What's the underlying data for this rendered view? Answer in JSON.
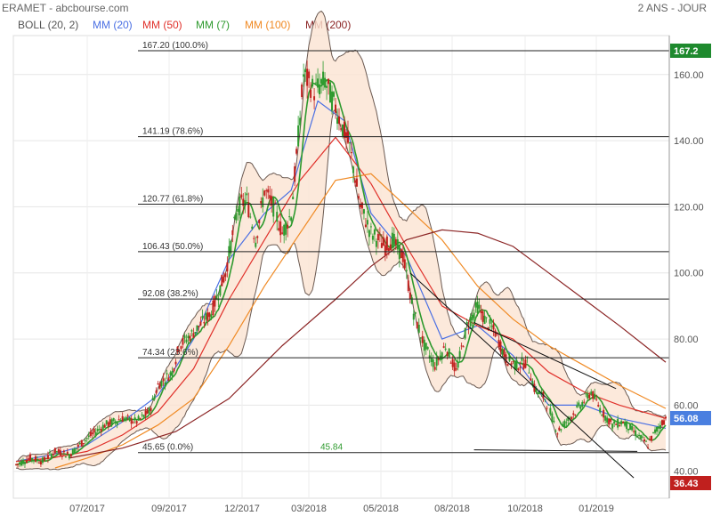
{
  "header": {
    "title": "ERAMET - abcbourse.com",
    "period": "2 ANS - JOUR"
  },
  "legend": [
    {
      "label": "BOLL (20, 2)",
      "color": "#555555"
    },
    {
      "label": "MM (20)",
      "color": "#4a6fe3"
    },
    {
      "label": "MM (50)",
      "color": "#e0302a"
    },
    {
      "label": "MM (7)",
      "color": "#2e9a2e"
    },
    {
      "label": "MM (100)",
      "color": "#f08a24"
    },
    {
      "label": "MM (200)",
      "color": "#8b2424"
    }
  ],
  "chart_data": {
    "type": "candlestick",
    "y_axis": {
      "ticks": [
        40,
        60,
        80,
        100,
        120,
        140,
        160
      ],
      "tick_labels": [
        "40.00",
        "60.00",
        "80.00",
        "100.00",
        "120.00",
        "140.00",
        "160.00"
      ],
      "position": "right",
      "ylim": [
        36,
        170
      ]
    },
    "x_axis": {
      "tick_labels": [
        "07/2017",
        "09/2017",
        "12/2017",
        "03/2018",
        "05/2018",
        "08/2018",
        "10/2018",
        "01/2019"
      ]
    },
    "fibonacci_levels": [
      {
        "value": 167.2,
        "label": "167.20  (100.0%)"
      },
      {
        "value": 141.19,
        "label": "141.19  (78.6%)"
      },
      {
        "value": 120.77,
        "label": "120.77  (61.8%)"
      },
      {
        "value": 106.43,
        "label": "106.43  (50.0%)"
      },
      {
        "value": 92.08,
        "label": "92.08  (38.2%)"
      },
      {
        "value": 74.34,
        "label": "74.34  (23.6%)"
      },
      {
        "value": 45.65,
        "label": "45.65  (0.0%)"
      }
    ],
    "price_tags": [
      {
        "value": 167.2,
        "label": "167.2",
        "color": "#1e8a2e"
      },
      {
        "value": 56.08,
        "label": "56.08",
        "color": "#4a7fe0"
      },
      {
        "value": 36.43,
        "label": "36.43",
        "color": "#c0201e"
      }
    ],
    "annotations": [
      {
        "text": "45.84",
        "color": "#2e9a2e"
      }
    ],
    "price_path_approx": [
      [
        0,
        42
      ],
      [
        8,
        44
      ],
      [
        15,
        43
      ],
      [
        22,
        46
      ],
      [
        30,
        45
      ],
      [
        40,
        50
      ],
      [
        50,
        54
      ],
      [
        55,
        55
      ],
      [
        60,
        56
      ],
      [
        68,
        55
      ],
      [
        75,
        58
      ],
      [
        80,
        66
      ],
      [
        88,
        70
      ],
      [
        92,
        78
      ],
      [
        100,
        82
      ],
      [
        110,
        88
      ],
      [
        118,
        100
      ],
      [
        125,
        120
      ],
      [
        130,
        122
      ],
      [
        135,
        110
      ],
      [
        140,
        125
      ],
      [
        145,
        120
      ],
      [
        150,
        112
      ],
      [
        155,
        118
      ],
      [
        158,
        135
      ],
      [
        162,
        160
      ],
      [
        168,
        155
      ],
      [
        174,
        158
      ],
      [
        180,
        150
      ],
      [
        188,
        138
      ],
      [
        194,
        120
      ],
      [
        200,
        112
      ],
      [
        208,
        108
      ],
      [
        212,
        110
      ],
      [
        218,
        105
      ],
      [
        224,
        88
      ],
      [
        230,
        78
      ],
      [
        236,
        72
      ],
      [
        242,
        78
      ],
      [
        248,
        70
      ],
      [
        254,
        84
      ],
      [
        260,
        90
      ],
      [
        264,
        86
      ],
      [
        270,
        82
      ],
      [
        276,
        74
      ],
      [
        282,
        72
      ],
      [
        288,
        73
      ],
      [
        292,
        65
      ],
      [
        298,
        62
      ],
      [
        305,
        52
      ],
      [
        310,
        55
      ],
      [
        318,
        60
      ],
      [
        324,
        64
      ],
      [
        330,
        58
      ],
      [
        336,
        54
      ],
      [
        342,
        55
      ],
      [
        348,
        52
      ],
      [
        352,
        50
      ],
      [
        356,
        48
      ],
      [
        360,
        52
      ],
      [
        366,
        56
      ]
    ],
    "series": [
      {
        "name": "MM (20)",
        "values_approx": [
          [
            0,
            43
          ],
          [
            20,
            45
          ],
          [
            40,
            48
          ],
          [
            60,
            55
          ],
          [
            80,
            63
          ],
          [
            100,
            80
          ],
          [
            120,
            104
          ],
          [
            140,
            118
          ],
          [
            155,
            125
          ],
          [
            170,
            152
          ],
          [
            185,
            146
          ],
          [
            200,
            118
          ],
          [
            220,
            105
          ],
          [
            240,
            80
          ],
          [
            260,
            84
          ],
          [
            280,
            75
          ],
          [
            300,
            60
          ],
          [
            320,
            60
          ],
          [
            340,
            56
          ],
          [
            366,
            53
          ]
        ]
      },
      {
        "name": "MM (50)",
        "values_approx": [
          [
            0,
            43
          ],
          [
            20,
            44
          ],
          [
            40,
            46
          ],
          [
            60,
            51
          ],
          [
            80,
            58
          ],
          [
            100,
            71
          ],
          [
            120,
            92
          ],
          [
            140,
            110
          ],
          [
            160,
            128
          ],
          [
            180,
            141
          ],
          [
            200,
            127
          ],
          [
            220,
            108
          ],
          [
            240,
            90
          ],
          [
            260,
            84
          ],
          [
            280,
            80
          ],
          [
            300,
            70
          ],
          [
            320,
            64
          ],
          [
            340,
            60
          ],
          [
            366,
            56
          ]
        ]
      },
      {
        "name": "MM (100)",
        "values_approx": [
          [
            22,
            41
          ],
          [
            40,
            44
          ],
          [
            60,
            48
          ],
          [
            80,
            54
          ],
          [
            100,
            62
          ],
          [
            120,
            78
          ],
          [
            140,
            96
          ],
          [
            160,
            112
          ],
          [
            180,
            128
          ],
          [
            200,
            130
          ],
          [
            220,
            120
          ],
          [
            240,
            110
          ],
          [
            260,
            96
          ],
          [
            280,
            86
          ],
          [
            300,
            78
          ],
          [
            320,
            72
          ],
          [
            340,
            66
          ],
          [
            366,
            59
          ]
        ]
      },
      {
        "name": "MM (200)",
        "values_approx": [
          [
            30,
            44
          ],
          [
            60,
            47
          ],
          [
            90,
            52
          ],
          [
            120,
            62
          ],
          [
            150,
            78
          ],
          [
            180,
            92
          ],
          [
            200,
            102
          ],
          [
            220,
            110
          ],
          [
            240,
            113
          ],
          [
            260,
            112
          ],
          [
            280,
            108
          ],
          [
            300,
            100
          ],
          [
            320,
            92
          ],
          [
            340,
            84
          ],
          [
            366,
            73
          ]
        ]
      }
    ],
    "trend_lines": [
      {
        "from": [
          222,
          100
        ],
        "to": [
          348,
          38
        ]
      },
      {
        "from": [
          258,
          85
        ],
        "to": [
          338,
          65
        ]
      },
      {
        "from": [
          258,
          46.5
        ],
        "to": [
          350,
          46
        ]
      }
    ]
  }
}
